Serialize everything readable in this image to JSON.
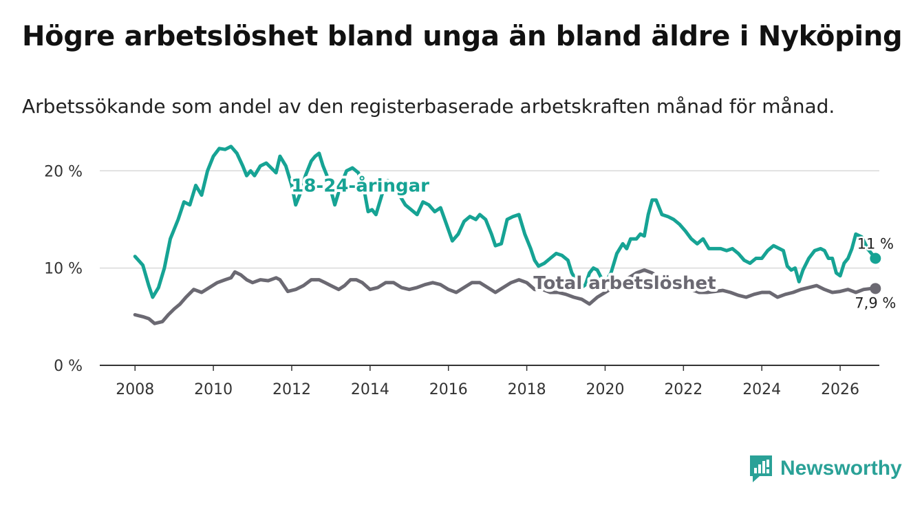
{
  "header": {
    "title": "Högre arbetslöshet bland unga än bland äldre i Nyköping",
    "subtitle": "Arbetssökande som andel av den registerbaserade arbetskraften månad för månad."
  },
  "brand": {
    "name": "Newsworthy"
  },
  "colors": {
    "youth": "#16a394",
    "total": "#6b6972",
    "grid": "#d9d9d9",
    "axis": "#333333",
    "brand": "#2aa197"
  },
  "chart_data": {
    "type": "line",
    "title": "Högre arbetslöshet bland unga än bland äldre i Nyköping",
    "subtitle": "Arbetssökande som andel av den registerbaserade arbetskraften månad för månad.",
    "xlabel": "",
    "ylabel": "",
    "xlim": [
      2007.1,
      2027.0
    ],
    "ylim": [
      0,
      22
    ],
    "xticks": [
      2008,
      2010,
      2012,
      2014,
      2016,
      2018,
      2020,
      2022,
      2024,
      2026
    ],
    "xtick_labels": [
      "2008",
      "2010",
      "2012",
      "2014",
      "2016",
      "2018",
      "2020",
      "2022",
      "2024",
      "2026"
    ],
    "yticks": [
      0,
      10,
      20
    ],
    "ytick_labels": [
      "0 %",
      "10 %",
      "20 %"
    ],
    "grid": true,
    "series": [
      {
        "name": "18-24-åringar",
        "end_label": "11 %",
        "points": [
          [
            2008.0,
            11.2
          ],
          [
            2008.2,
            10.3
          ],
          [
            2008.35,
            8.2
          ],
          [
            2008.45,
            7.0
          ],
          [
            2008.6,
            8.0
          ],
          [
            2008.75,
            10.0
          ],
          [
            2008.9,
            13.0
          ],
          [
            2009.1,
            15.0
          ],
          [
            2009.25,
            16.8
          ],
          [
            2009.4,
            16.5
          ],
          [
            2009.55,
            18.5
          ],
          [
            2009.7,
            17.5
          ],
          [
            2009.85,
            20.0
          ],
          [
            2010.0,
            21.5
          ],
          [
            2010.15,
            22.3
          ],
          [
            2010.3,
            22.2
          ],
          [
            2010.45,
            22.5
          ],
          [
            2010.6,
            21.8
          ],
          [
            2010.75,
            20.5
          ],
          [
            2010.85,
            19.5
          ],
          [
            2010.95,
            20.0
          ],
          [
            2011.05,
            19.5
          ],
          [
            2011.2,
            20.5
          ],
          [
            2011.35,
            20.8
          ],
          [
            2011.5,
            20.2
          ],
          [
            2011.6,
            19.8
          ],
          [
            2011.7,
            21.5
          ],
          [
            2011.85,
            20.5
          ],
          [
            2012.0,
            18.5
          ],
          [
            2012.1,
            16.5
          ],
          [
            2012.2,
            17.5
          ],
          [
            2012.35,
            19.5
          ],
          [
            2012.5,
            21.0
          ],
          [
            2012.6,
            21.5
          ],
          [
            2012.7,
            21.8
          ],
          [
            2012.8,
            20.5
          ],
          [
            2012.9,
            19.5
          ],
          [
            2013.0,
            18.0
          ],
          [
            2013.1,
            16.5
          ],
          [
            2013.25,
            18.5
          ],
          [
            2013.4,
            20.0
          ],
          [
            2013.55,
            20.3
          ],
          [
            2013.7,
            19.8
          ],
          [
            2013.85,
            18.0
          ],
          [
            2013.95,
            15.8
          ],
          [
            2014.05,
            16.0
          ],
          [
            2014.15,
            15.5
          ],
          [
            2014.3,
            17.5
          ],
          [
            2014.45,
            19.0
          ],
          [
            2014.6,
            18.8
          ],
          [
            2014.75,
            17.5
          ],
          [
            2014.9,
            16.5
          ],
          [
            2015.05,
            16.0
          ],
          [
            2015.2,
            15.5
          ],
          [
            2015.35,
            16.8
          ],
          [
            2015.5,
            16.5
          ],
          [
            2015.65,
            15.8
          ],
          [
            2015.8,
            16.2
          ],
          [
            2015.95,
            14.5
          ],
          [
            2016.1,
            12.8
          ],
          [
            2016.25,
            13.5
          ],
          [
            2016.4,
            14.8
          ],
          [
            2016.55,
            15.3
          ],
          [
            2016.7,
            15.0
          ],
          [
            2016.8,
            15.5
          ],
          [
            2016.95,
            15.0
          ],
          [
            2017.1,
            13.5
          ],
          [
            2017.2,
            12.3
          ],
          [
            2017.35,
            12.5
          ],
          [
            2017.5,
            15.0
          ],
          [
            2017.65,
            15.3
          ],
          [
            2017.8,
            15.5
          ],
          [
            2017.95,
            13.5
          ],
          [
            2018.1,
            12.0
          ],
          [
            2018.2,
            10.8
          ],
          [
            2018.3,
            10.2
          ],
          [
            2018.45,
            10.5
          ],
          [
            2018.6,
            11.0
          ],
          [
            2018.75,
            11.5
          ],
          [
            2018.9,
            11.3
          ],
          [
            2019.05,
            10.8
          ],
          [
            2019.15,
            9.5
          ],
          [
            2019.3,
            8.5
          ],
          [
            2019.4,
            8.0
          ],
          [
            2019.5,
            8.3
          ],
          [
            2019.6,
            9.5
          ],
          [
            2019.7,
            10.0
          ],
          [
            2019.8,
            9.8
          ],
          [
            2019.9,
            9.0
          ],
          [
            2020.0,
            8.5
          ],
          [
            2020.15,
            9.5
          ],
          [
            2020.3,
            11.5
          ],
          [
            2020.45,
            12.5
          ],
          [
            2020.55,
            12.0
          ],
          [
            2020.65,
            13.0
          ],
          [
            2020.8,
            13.0
          ],
          [
            2020.9,
            13.5
          ],
          [
            2021.0,
            13.3
          ],
          [
            2021.1,
            15.5
          ],
          [
            2021.2,
            17.0
          ],
          [
            2021.3,
            17.0
          ],
          [
            2021.45,
            15.5
          ],
          [
            2021.6,
            15.3
          ],
          [
            2021.75,
            15.0
          ],
          [
            2021.9,
            14.5
          ],
          [
            2022.05,
            13.8
          ],
          [
            2022.2,
            13.0
          ],
          [
            2022.35,
            12.5
          ],
          [
            2022.5,
            13.0
          ],
          [
            2022.65,
            12.0
          ],
          [
            2022.8,
            12.0
          ],
          [
            2022.95,
            12.0
          ],
          [
            2023.1,
            11.8
          ],
          [
            2023.25,
            12.0
          ],
          [
            2023.4,
            11.5
          ],
          [
            2023.55,
            10.8
          ],
          [
            2023.7,
            10.5
          ],
          [
            2023.85,
            11.0
          ],
          [
            2024.0,
            11.0
          ],
          [
            2024.15,
            11.8
          ],
          [
            2024.3,
            12.3
          ],
          [
            2024.45,
            12.0
          ],
          [
            2024.55,
            11.8
          ],
          [
            2024.65,
            10.2
          ],
          [
            2024.75,
            9.8
          ],
          [
            2024.85,
            10.0
          ],
          [
            2024.95,
            8.6
          ],
          [
            2025.05,
            9.8
          ],
          [
            2025.2,
            11.0
          ],
          [
            2025.35,
            11.8
          ],
          [
            2025.5,
            12.0
          ],
          [
            2025.6,
            11.8
          ],
          [
            2025.7,
            11.0
          ],
          [
            2025.8,
            11.0
          ],
          [
            2025.9,
            9.5
          ],
          [
            2026.0,
            9.2
          ],
          [
            2026.1,
            10.5
          ],
          [
            2026.2,
            11.0
          ],
          [
            2026.3,
            12.0
          ],
          [
            2026.4,
            13.5
          ],
          [
            2026.55,
            13.2
          ],
          [
            2026.7,
            12.0
          ],
          [
            2026.8,
            11.5
          ],
          [
            2026.9,
            11.0
          ]
        ]
      },
      {
        "name": "Total arbetslöshet",
        "end_label": "7,9 %",
        "points": [
          [
            2008.0,
            5.2
          ],
          [
            2008.2,
            5.0
          ],
          [
            2008.35,
            4.8
          ],
          [
            2008.5,
            4.3
          ],
          [
            2008.7,
            4.5
          ],
          [
            2008.85,
            5.2
          ],
          [
            2009.0,
            5.8
          ],
          [
            2009.15,
            6.3
          ],
          [
            2009.3,
            7.0
          ],
          [
            2009.5,
            7.8
          ],
          [
            2009.7,
            7.5
          ],
          [
            2009.9,
            8.0
          ],
          [
            2010.1,
            8.5
          ],
          [
            2010.3,
            8.8
          ],
          [
            2010.45,
            9.0
          ],
          [
            2010.55,
            9.6
          ],
          [
            2010.7,
            9.3
          ],
          [
            2010.85,
            8.8
          ],
          [
            2011.0,
            8.5
          ],
          [
            2011.2,
            8.8
          ],
          [
            2011.4,
            8.7
          ],
          [
            2011.6,
            9.0
          ],
          [
            2011.7,
            8.8
          ],
          [
            2011.8,
            8.2
          ],
          [
            2011.9,
            7.6
          ],
          [
            2012.1,
            7.8
          ],
          [
            2012.3,
            8.2
          ],
          [
            2012.5,
            8.8
          ],
          [
            2012.7,
            8.8
          ],
          [
            2012.85,
            8.5
          ],
          [
            2013.0,
            8.2
          ],
          [
            2013.2,
            7.8
          ],
          [
            2013.35,
            8.2
          ],
          [
            2013.5,
            8.8
          ],
          [
            2013.65,
            8.8
          ],
          [
            2013.8,
            8.5
          ],
          [
            2014.0,
            7.8
          ],
          [
            2014.2,
            8.0
          ],
          [
            2014.4,
            8.5
          ],
          [
            2014.6,
            8.5
          ],
          [
            2014.8,
            8.0
          ],
          [
            2015.0,
            7.8
          ],
          [
            2015.2,
            8.0
          ],
          [
            2015.4,
            8.3
          ],
          [
            2015.6,
            8.5
          ],
          [
            2015.8,
            8.3
          ],
          [
            2016.0,
            7.8
          ],
          [
            2016.2,
            7.5
          ],
          [
            2016.4,
            8.0
          ],
          [
            2016.6,
            8.5
          ],
          [
            2016.8,
            8.5
          ],
          [
            2017.0,
            8.0
          ],
          [
            2017.2,
            7.5
          ],
          [
            2017.4,
            8.0
          ],
          [
            2017.6,
            8.5
          ],
          [
            2017.8,
            8.8
          ],
          [
            2018.0,
            8.5
          ],
          [
            2018.2,
            7.8
          ],
          [
            2018.4,
            7.8
          ],
          [
            2018.6,
            7.5
          ],
          [
            2018.8,
            7.5
          ],
          [
            2019.0,
            7.3
          ],
          [
            2019.2,
            7.0
          ],
          [
            2019.4,
            6.8
          ],
          [
            2019.6,
            6.3
          ],
          [
            2019.8,
            7.0
          ],
          [
            2020.0,
            7.5
          ],
          [
            2020.2,
            8.0
          ],
          [
            2020.4,
            8.5
          ],
          [
            2020.6,
            9.0
          ],
          [
            2020.8,
            9.5
          ],
          [
            2021.0,
            9.8
          ],
          [
            2021.2,
            9.5
          ],
          [
            2021.4,
            9.0
          ],
          [
            2021.6,
            8.5
          ],
          [
            2021.8,
            8.5
          ],
          [
            2022.0,
            8.0
          ],
          [
            2022.2,
            7.8
          ],
          [
            2022.4,
            7.5
          ],
          [
            2022.6,
            7.5
          ],
          [
            2022.8,
            7.6
          ],
          [
            2023.0,
            7.7
          ],
          [
            2023.2,
            7.5
          ],
          [
            2023.4,
            7.2
          ],
          [
            2023.6,
            7.0
          ],
          [
            2023.8,
            7.3
          ],
          [
            2024.0,
            7.5
          ],
          [
            2024.2,
            7.5
          ],
          [
            2024.4,
            7.0
          ],
          [
            2024.6,
            7.3
          ],
          [
            2024.8,
            7.5
          ],
          [
            2025.0,
            7.8
          ],
          [
            2025.2,
            8.0
          ],
          [
            2025.4,
            8.2
          ],
          [
            2025.6,
            7.8
          ],
          [
            2025.8,
            7.5
          ],
          [
            2026.0,
            7.6
          ],
          [
            2026.2,
            7.8
          ],
          [
            2026.4,
            7.5
          ],
          [
            2026.6,
            7.8
          ],
          [
            2026.8,
            7.9
          ],
          [
            2026.9,
            7.9
          ]
        ]
      }
    ],
    "annotations": [
      {
        "text": "18-24-åringar",
        "series": "18-24-åringar",
        "x": 2013.75,
        "y": 18.5
      },
      {
        "text": "Total arbetslöshet",
        "series": "Total arbetslöshet",
        "x": 2020.5,
        "y": 8.5
      }
    ]
  }
}
